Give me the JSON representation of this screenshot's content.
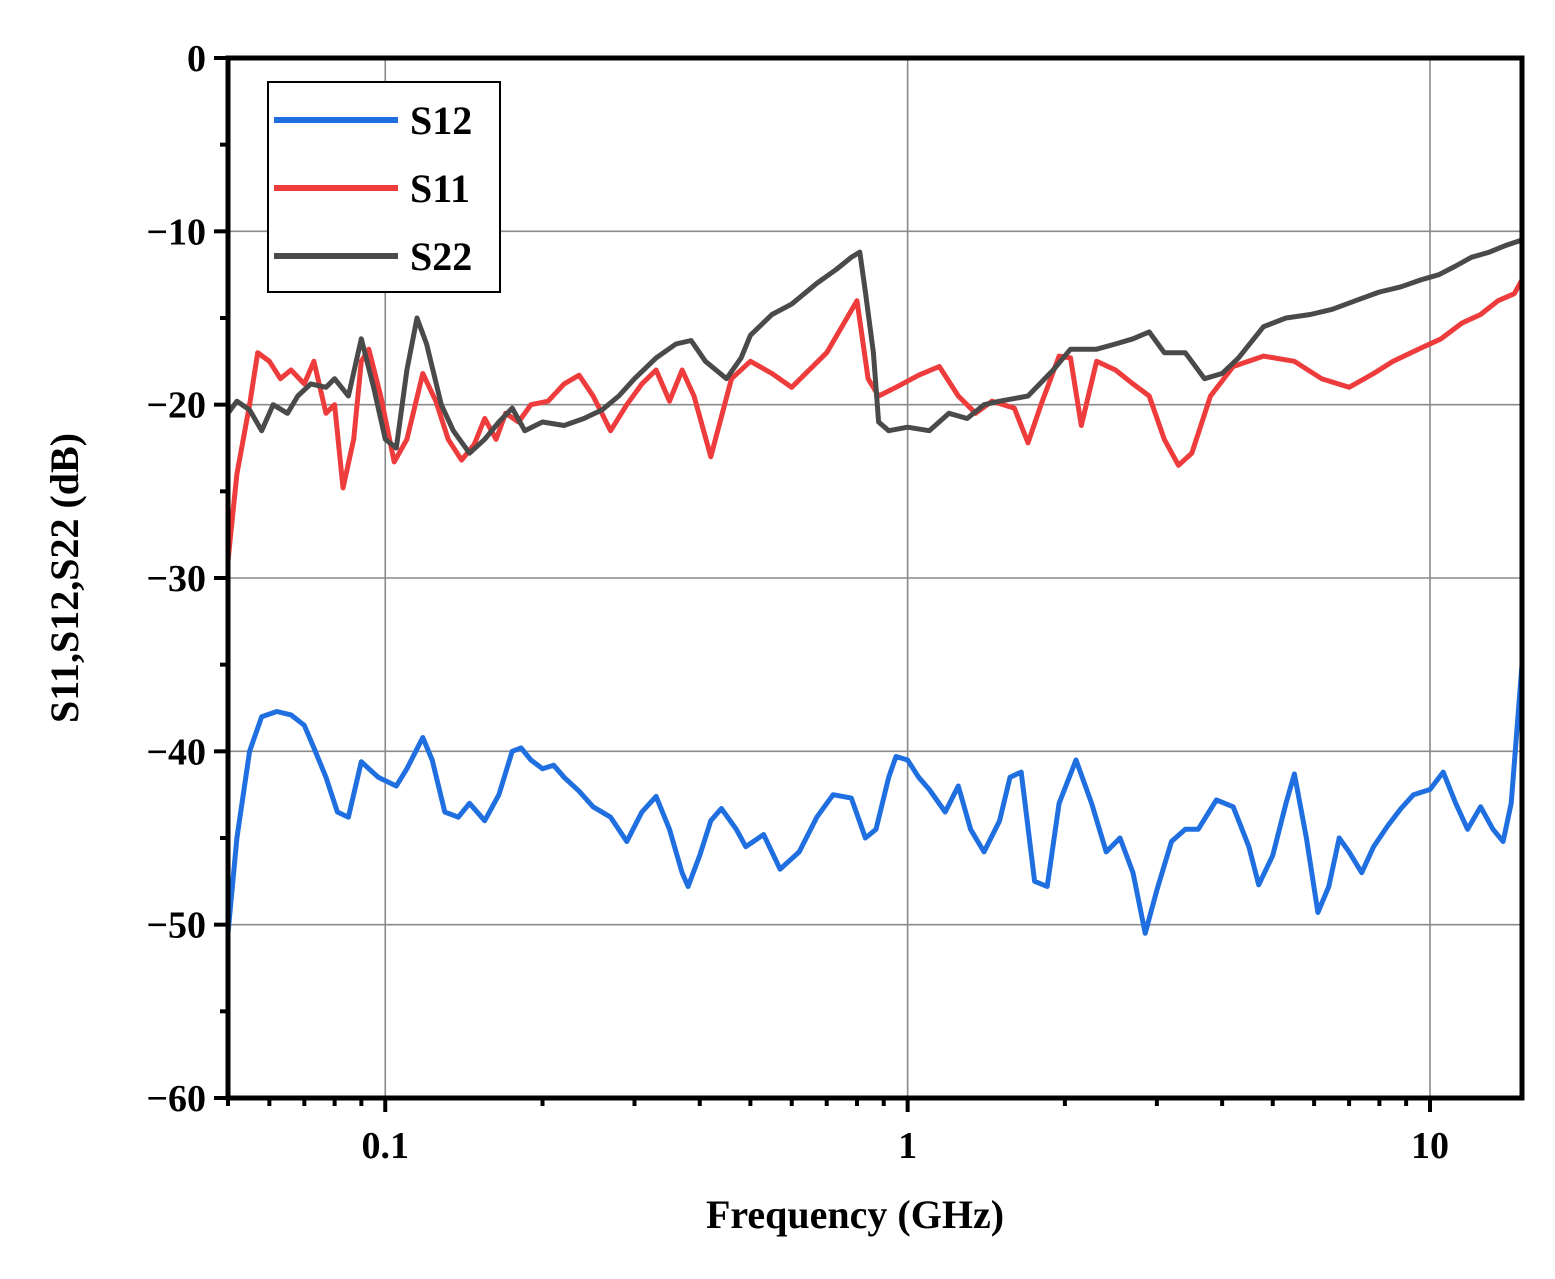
{
  "chart_data": {
    "type": "line",
    "title": "",
    "xlabel": "Frequency (GHz)",
    "ylabel": "S11,S12,S22 (dB)",
    "xscale": "log",
    "xlim": [
      0.05,
      15
    ],
    "ylim": [
      -60,
      0
    ],
    "grid": true,
    "legend_position": "top-left",
    "x_ticks": [
      0.1,
      1,
      10
    ],
    "x_tick_labels": [
      "0.1",
      "1",
      "10"
    ],
    "y_ticks": [
      0,
      -10,
      -20,
      -30,
      -40,
      -50,
      -60
    ],
    "y_tick_labels": [
      "0",
      "−10",
      "−20",
      "−30",
      "−40",
      "−50",
      "−60"
    ],
    "series": [
      {
        "name": "S12",
        "color": "#1f6fe0",
        "points": [
          [
            0.05,
            -50.5
          ],
          [
            0.052,
            -45
          ],
          [
            0.055,
            -40
          ],
          [
            0.058,
            -38
          ],
          [
            0.062,
            -37.7
          ],
          [
            0.066,
            -37.9
          ],
          [
            0.07,
            -38.5
          ],
          [
            0.073,
            -39.8
          ],
          [
            0.077,
            -41.5
          ],
          [
            0.081,
            -43.5
          ],
          [
            0.085,
            -43.8
          ],
          [
            0.09,
            -40.6
          ],
          [
            0.093,
            -41
          ],
          [
            0.097,
            -41.5
          ],
          [
            0.105,
            -42
          ],
          [
            0.11,
            -41
          ],
          [
            0.118,
            -39.2
          ],
          [
            0.123,
            -40.5
          ],
          [
            0.13,
            -43.5
          ],
          [
            0.138,
            -43.8
          ],
          [
            0.145,
            -43
          ],
          [
            0.155,
            -44
          ],
          [
            0.165,
            -42.5
          ],
          [
            0.175,
            -40
          ],
          [
            0.182,
            -39.8
          ],
          [
            0.19,
            -40.5
          ],
          [
            0.2,
            -41
          ],
          [
            0.21,
            -40.8
          ],
          [
            0.22,
            -41.5
          ],
          [
            0.235,
            -42.3
          ],
          [
            0.25,
            -43.2
          ],
          [
            0.27,
            -43.8
          ],
          [
            0.29,
            -45.2
          ],
          [
            0.31,
            -43.5
          ],
          [
            0.33,
            -42.6
          ],
          [
            0.35,
            -44.5
          ],
          [
            0.37,
            -47
          ],
          [
            0.38,
            -47.8
          ],
          [
            0.4,
            -46
          ],
          [
            0.42,
            -44
          ],
          [
            0.44,
            -43.3
          ],
          [
            0.47,
            -44.5
          ],
          [
            0.49,
            -45.5
          ],
          [
            0.53,
            -44.8
          ],
          [
            0.57,
            -46.8
          ],
          [
            0.62,
            -45.8
          ],
          [
            0.67,
            -43.8
          ],
          [
            0.72,
            -42.5
          ],
          [
            0.78,
            -42.7
          ],
          [
            0.83,
            -45
          ],
          [
            0.87,
            -44.5
          ],
          [
            0.92,
            -41.5
          ],
          [
            0.95,
            -40.3
          ],
          [
            1.0,
            -40.5
          ],
          [
            1.05,
            -41.5
          ],
          [
            1.1,
            -42.2
          ],
          [
            1.18,
            -43.5
          ],
          [
            1.25,
            -42
          ],
          [
            1.32,
            -44.5
          ],
          [
            1.4,
            -45.8
          ],
          [
            1.5,
            -44
          ],
          [
            1.57,
            -41.5
          ],
          [
            1.65,
            -41.2
          ],
          [
            1.75,
            -47.5
          ],
          [
            1.85,
            -47.8
          ],
          [
            1.95,
            -43
          ],
          [
            2.1,
            -40.5
          ],
          [
            2.25,
            -43
          ],
          [
            2.4,
            -45.8
          ],
          [
            2.55,
            -45
          ],
          [
            2.7,
            -47
          ],
          [
            2.85,
            -50.5
          ],
          [
            3.0,
            -48
          ],
          [
            3.2,
            -45.2
          ],
          [
            3.4,
            -44.5
          ],
          [
            3.6,
            -44.5
          ],
          [
            3.9,
            -42.8
          ],
          [
            4.2,
            -43.2
          ],
          [
            4.5,
            -45.5
          ],
          [
            4.7,
            -47.7
          ],
          [
            5.0,
            -46
          ],
          [
            5.3,
            -43
          ],
          [
            5.5,
            -41.3
          ],
          [
            5.8,
            -45
          ],
          [
            6.1,
            -49.3
          ],
          [
            6.4,
            -47.8
          ],
          [
            6.7,
            -45
          ],
          [
            7.0,
            -45.8
          ],
          [
            7.4,
            -47
          ],
          [
            7.8,
            -45.5
          ],
          [
            8.3,
            -44.3
          ],
          [
            8.8,
            -43.3
          ],
          [
            9.3,
            -42.5
          ],
          [
            10.0,
            -42.2
          ],
          [
            10.6,
            -41.2
          ],
          [
            11.2,
            -43
          ],
          [
            11.8,
            -44.5
          ],
          [
            12.5,
            -43.2
          ],
          [
            13.2,
            -44.5
          ],
          [
            13.8,
            -45.2
          ],
          [
            14.3,
            -43
          ],
          [
            15.0,
            -35
          ]
        ]
      },
      {
        "name": "S11",
        "color": "#ee3b3b",
        "points": [
          [
            0.05,
            -29
          ],
          [
            0.052,
            -24
          ],
          [
            0.055,
            -20
          ],
          [
            0.057,
            -17
          ],
          [
            0.06,
            -17.5
          ],
          [
            0.063,
            -18.5
          ],
          [
            0.066,
            -18
          ],
          [
            0.07,
            -18.8
          ],
          [
            0.073,
            -17.5
          ],
          [
            0.077,
            -20.5
          ],
          [
            0.08,
            -20
          ],
          [
            0.083,
            -24.8
          ],
          [
            0.087,
            -22
          ],
          [
            0.09,
            -17.5
          ],
          [
            0.093,
            -16.8
          ],
          [
            0.098,
            -19.5
          ],
          [
            0.104,
            -23.3
          ],
          [
            0.11,
            -22
          ],
          [
            0.118,
            -18.2
          ],
          [
            0.125,
            -19.8
          ],
          [
            0.132,
            -22
          ],
          [
            0.14,
            -23.2
          ],
          [
            0.148,
            -22.3
          ],
          [
            0.155,
            -20.8
          ],
          [
            0.163,
            -22
          ],
          [
            0.17,
            -20.5
          ],
          [
            0.18,
            -21
          ],
          [
            0.19,
            -20
          ],
          [
            0.205,
            -19.8
          ],
          [
            0.22,
            -18.8
          ],
          [
            0.235,
            -18.3
          ],
          [
            0.25,
            -19.5
          ],
          [
            0.27,
            -21.5
          ],
          [
            0.29,
            -20
          ],
          [
            0.31,
            -18.8
          ],
          [
            0.33,
            -18
          ],
          [
            0.35,
            -19.8
          ],
          [
            0.37,
            -18
          ],
          [
            0.39,
            -19.5
          ],
          [
            0.42,
            -23
          ],
          [
            0.46,
            -18.5
          ],
          [
            0.5,
            -17.5
          ],
          [
            0.55,
            -18.2
          ],
          [
            0.6,
            -19
          ],
          [
            0.7,
            -17
          ],
          [
            0.8,
            -14
          ],
          [
            0.84,
            -18.5
          ],
          [
            0.88,
            -19.5
          ],
          [
            0.95,
            -19
          ],
          [
            1.05,
            -18.3
          ],
          [
            1.15,
            -17.8
          ],
          [
            1.25,
            -19.5
          ],
          [
            1.35,
            -20.5
          ],
          [
            1.45,
            -19.8
          ],
          [
            1.6,
            -20.2
          ],
          [
            1.7,
            -22.2
          ],
          [
            1.8,
            -20
          ],
          [
            1.95,
            -17.2
          ],
          [
            2.05,
            -17.3
          ],
          [
            2.15,
            -21.2
          ],
          [
            2.3,
            -17.5
          ],
          [
            2.5,
            -18
          ],
          [
            2.7,
            -18.8
          ],
          [
            2.9,
            -19.5
          ],
          [
            3.1,
            -22
          ],
          [
            3.3,
            -23.5
          ],
          [
            3.5,
            -22.8
          ],
          [
            3.8,
            -19.5
          ],
          [
            4.2,
            -17.8
          ],
          [
            4.8,
            -17.2
          ],
          [
            5.5,
            -17.5
          ],
          [
            6.2,
            -18.5
          ],
          [
            7.0,
            -19
          ],
          [
            7.8,
            -18.2
          ],
          [
            8.5,
            -17.5
          ],
          [
            9.5,
            -16.8
          ],
          [
            10.5,
            -16.2
          ],
          [
            11.5,
            -15.3
          ],
          [
            12.5,
            -14.8
          ],
          [
            13.5,
            -14
          ],
          [
            14.5,
            -13.6
          ],
          [
            15.0,
            -12.8
          ]
        ]
      },
      {
        "name": "S22",
        "color": "#4a4a4a",
        "points": [
          [
            0.05,
            -20.5
          ],
          [
            0.052,
            -19.8
          ],
          [
            0.055,
            -20.3
          ],
          [
            0.058,
            -21.5
          ],
          [
            0.061,
            -20
          ],
          [
            0.065,
            -20.5
          ],
          [
            0.068,
            -19.5
          ],
          [
            0.072,
            -18.8
          ],
          [
            0.077,
            -19
          ],
          [
            0.08,
            -18.5
          ],
          [
            0.085,
            -19.5
          ],
          [
            0.09,
            -16.2
          ],
          [
            0.095,
            -19
          ],
          [
            0.1,
            -22
          ],
          [
            0.105,
            -22.5
          ],
          [
            0.11,
            -18
          ],
          [
            0.115,
            -15
          ],
          [
            0.12,
            -16.5
          ],
          [
            0.128,
            -20
          ],
          [
            0.135,
            -21.5
          ],
          [
            0.145,
            -22.8
          ],
          [
            0.155,
            -22
          ],
          [
            0.165,
            -21
          ],
          [
            0.175,
            -20.2
          ],
          [
            0.185,
            -21.5
          ],
          [
            0.2,
            -21
          ],
          [
            0.22,
            -21.2
          ],
          [
            0.24,
            -20.8
          ],
          [
            0.26,
            -20.3
          ],
          [
            0.28,
            -19.5
          ],
          [
            0.3,
            -18.5
          ],
          [
            0.33,
            -17.3
          ],
          [
            0.36,
            -16.5
          ],
          [
            0.385,
            -16.3
          ],
          [
            0.41,
            -17.5
          ],
          [
            0.45,
            -18.5
          ],
          [
            0.48,
            -17.3
          ],
          [
            0.5,
            -16
          ],
          [
            0.55,
            -14.8
          ],
          [
            0.6,
            -14.2
          ],
          [
            0.67,
            -13
          ],
          [
            0.73,
            -12.2
          ],
          [
            0.78,
            -11.5
          ],
          [
            0.81,
            -11.2
          ],
          [
            0.83,
            -13.5
          ],
          [
            0.86,
            -17
          ],
          [
            0.88,
            -21
          ],
          [
            0.92,
            -21.5
          ],
          [
            1.0,
            -21.3
          ],
          [
            1.1,
            -21.5
          ],
          [
            1.2,
            -20.5
          ],
          [
            1.3,
            -20.8
          ],
          [
            1.4,
            -20
          ],
          [
            1.5,
            -19.8
          ],
          [
            1.7,
            -19.5
          ],
          [
            1.9,
            -18
          ],
          [
            2.05,
            -16.8
          ],
          [
            2.3,
            -16.8
          ],
          [
            2.5,
            -16.5
          ],
          [
            2.7,
            -16.2
          ],
          [
            2.9,
            -15.8
          ],
          [
            3.1,
            -17
          ],
          [
            3.4,
            -17
          ],
          [
            3.7,
            -18.5
          ],
          [
            4.0,
            -18.2
          ],
          [
            4.3,
            -17.3
          ],
          [
            4.8,
            -15.5
          ],
          [
            5.3,
            -15
          ],
          [
            5.9,
            -14.8
          ],
          [
            6.5,
            -14.5
          ],
          [
            7.2,
            -14
          ],
          [
            8.0,
            -13.5
          ],
          [
            8.8,
            -13.2
          ],
          [
            9.6,
            -12.8
          ],
          [
            10.4,
            -12.5
          ],
          [
            11.2,
            -12
          ],
          [
            12.0,
            -11.5
          ],
          [
            13.0,
            -11.2
          ],
          [
            14.0,
            -10.8
          ],
          [
            15.0,
            -10.5
          ]
        ]
      }
    ]
  }
}
